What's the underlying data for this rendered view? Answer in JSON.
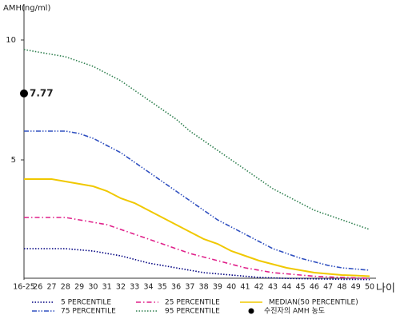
{
  "chart_data": {
    "type": "line",
    "y_label": "AMH(ng/ml)",
    "x_label": "나이",
    "categories": [
      "16-25",
      "26",
      "27",
      "28",
      "29",
      "30",
      "31",
      "32",
      "33",
      "34",
      "35",
      "36",
      "37",
      "38",
      "39",
      "40",
      "41",
      "42",
      "43",
      "44",
      "45",
      "46",
      "47",
      "48",
      "49",
      "50"
    ],
    "series": [
      {
        "name": "5 PERCENTILE",
        "color": "#000080",
        "style": "dotted",
        "values": [
          1.3,
          1.3,
          1.3,
          1.3,
          1.25,
          1.2,
          1.1,
          1.0,
          0.85,
          0.7,
          0.6,
          0.5,
          0.4,
          0.3,
          0.25,
          0.2,
          0.15,
          0.1,
          0.08,
          0.06,
          0.05,
          0.04,
          0.03,
          0.02,
          0.02,
          0.01
        ]
      },
      {
        "name": "25 PERCENTILE",
        "color": "#e0208a",
        "style": "dashdot",
        "values": [
          2.6,
          2.6,
          2.6,
          2.6,
          2.5,
          2.4,
          2.3,
          2.1,
          1.9,
          1.7,
          1.5,
          1.3,
          1.1,
          0.95,
          0.8,
          0.65,
          0.5,
          0.4,
          0.3,
          0.25,
          0.2,
          0.15,
          0.12,
          0.1,
          0.08,
          0.06
        ]
      },
      {
        "name": "MEDIAN(50 PERCENTILE)",
        "color": "#f0c800",
        "style": "solid",
        "values": [
          4.2,
          4.2,
          4.2,
          4.1,
          4.0,
          3.9,
          3.7,
          3.4,
          3.2,
          2.9,
          2.6,
          2.3,
          2.0,
          1.7,
          1.5,
          1.2,
          1.0,
          0.8,
          0.65,
          0.5,
          0.4,
          0.3,
          0.25,
          0.2,
          0.18,
          0.15
        ]
      },
      {
        "name": "75 PERCENTILE",
        "color": "#3050c0",
        "style": "dashdotdot",
        "values": [
          6.2,
          6.2,
          6.2,
          6.2,
          6.1,
          5.9,
          5.6,
          5.3,
          4.9,
          4.5,
          4.1,
          3.7,
          3.3,
          2.9,
          2.5,
          2.2,
          1.9,
          1.6,
          1.3,
          1.1,
          0.9,
          0.75,
          0.6,
          0.5,
          0.45,
          0.4
        ]
      },
      {
        "name": "95 PERCENTILE",
        "color": "#308050",
        "style": "dotted",
        "values": [
          9.6,
          9.5,
          9.4,
          9.3,
          9.1,
          8.9,
          8.6,
          8.3,
          7.9,
          7.5,
          7.1,
          6.7,
          6.2,
          5.8,
          5.4,
          5.0,
          4.6,
          4.2,
          3.8,
          3.5,
          3.2,
          2.9,
          2.7,
          2.5,
          2.3,
          2.1
        ]
      }
    ],
    "marker": {
      "name": "수진자의 AMH 농도",
      "category": "16-25",
      "value": 7.77,
      "color": "#000000"
    },
    "ylim": [
      0,
      11.5
    ],
    "yticks": [
      5,
      10
    ],
    "legend": "bottom"
  }
}
